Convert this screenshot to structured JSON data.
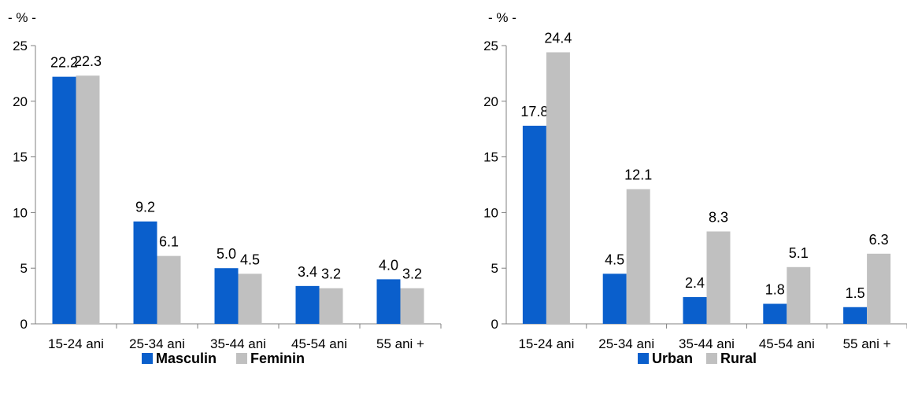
{
  "colors": {
    "primary": "#0a5fcc",
    "secondary": "#c0c0c0",
    "axis": "#808080"
  },
  "chart_data": [
    {
      "type": "bar",
      "unit_label": "- % -",
      "categories": [
        "15-24 ani",
        "25-34 ani",
        "35-44 ani",
        "45-54 ani",
        "55 ani +"
      ],
      "series": [
        {
          "name": "Masculin",
          "values": [
            22.2,
            9.2,
            5.0,
            3.4,
            4.0
          ],
          "labels": [
            "22.2",
            "9.2",
            "5.0",
            "3.4",
            "4.0"
          ]
        },
        {
          "name": "Feminin",
          "values": [
            22.3,
            6.1,
            4.5,
            3.2,
            3.2
          ],
          "labels": [
            "22.3",
            "6.1",
            "4.5",
            "3.2",
            "3.2"
          ]
        }
      ],
      "ylim": [
        0,
        25
      ],
      "yticks": [
        "0",
        "5",
        "10",
        "15",
        "20",
        "25"
      ],
      "legend_position": "bottom",
      "grid": false
    },
    {
      "type": "bar",
      "unit_label": "- % -",
      "categories": [
        "15-24 ani",
        "25-34 ani",
        "35-44 ani",
        "45-54 ani",
        "55 ani +"
      ],
      "series": [
        {
          "name": "Urban",
          "values": [
            17.8,
            4.5,
            2.4,
            1.8,
            1.5
          ],
          "labels": [
            "17.8",
            "4.5",
            "2.4",
            "1.8",
            "1.5"
          ]
        },
        {
          "name": "Rural",
          "values": [
            24.4,
            12.1,
            8.3,
            5.1,
            6.3
          ],
          "labels": [
            "24.4",
            "12.1",
            "8.3",
            "5.1",
            "6.3"
          ]
        }
      ],
      "ylim": [
        0,
        25
      ],
      "yticks": [
        "0",
        "5",
        "10",
        "15",
        "20",
        "25"
      ],
      "legend_position": "bottom",
      "grid": false
    }
  ]
}
